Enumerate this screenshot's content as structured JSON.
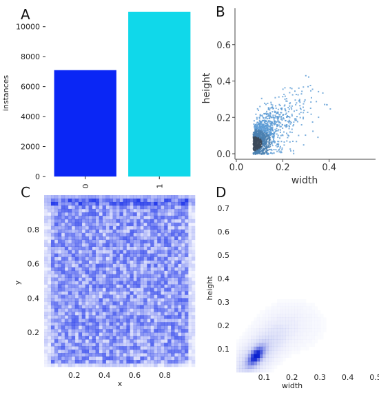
{
  "colors": {
    "bar0": "#0a26f5",
    "bar1": "#10d8ea",
    "scatter": "#5b9bd5",
    "scatter_dense": "#3a3a3a",
    "hist": "#1028e8",
    "kde": "#0a20d0"
  },
  "chart_data": [
    {
      "panel": "A",
      "type": "bar",
      "categories": [
        "0",
        "1"
      ],
      "values": [
        7100,
        11000
      ],
      "ylabel": "instances",
      "xlabel": "",
      "ylim": [
        0,
        11000
      ],
      "yticks": [
        0,
        2000,
        4000,
        6000,
        8000,
        10000
      ],
      "grid": false
    },
    {
      "panel": "B",
      "type": "scatter",
      "xlabel": "width",
      "ylabel": "height",
      "xlim": [
        0.0,
        0.6
      ],
      "ylim": [
        0.0,
        0.8
      ],
      "xticks": [
        0.0,
        0.2,
        0.4
      ],
      "yticks": [
        0.0,
        0.2,
        0.4,
        0.6
      ],
      "density_center": [
        0.07,
        0.06
      ],
      "grid": false
    },
    {
      "panel": "C",
      "type": "heatmap",
      "xlabel": "x",
      "ylabel": "y",
      "xlim": [
        0.0,
        1.0
      ],
      "ylim": [
        0.0,
        1.0
      ],
      "xticks": [
        0.2,
        0.4,
        0.6,
        0.8
      ],
      "yticks": [
        0.2,
        0.4,
        0.6,
        0.8
      ],
      "grid": false
    },
    {
      "panel": "D",
      "type": "heatmap",
      "xlabel": "width",
      "ylabel": "height",
      "xlim": [
        0.0,
        0.5
      ],
      "ylim": [
        0.0,
        0.75
      ],
      "xticks": [
        0.1,
        0.2,
        0.3,
        0.4,
        0.5
      ],
      "yticks": [
        0.1,
        0.2,
        0.3,
        0.4,
        0.5,
        0.6,
        0.7
      ],
      "density_center": [
        0.07,
        0.07
      ],
      "grid": false
    }
  ]
}
